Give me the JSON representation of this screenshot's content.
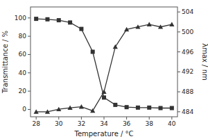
{
  "chart_data": {
    "type": "line",
    "x_label": "Temperature / °C",
    "y_label": "Transmittance / %",
    "y2_label": "λmax / nm",
    "x": [
      28,
      29,
      30,
      31,
      32,
      33,
      34,
      35,
      36,
      37,
      38,
      39,
      40
    ],
    "series": [
      {
        "color": "#333333",
        "marker": "square",
        "values": [
          99,
          98.5,
          97.5,
          95,
          88,
          63,
          13,
          5,
          2.5,
          2,
          2,
          1.5,
          1.5
        ]
      },
      {
        "color": "#333333",
        "marker": "triangle",
        "axis": "y2",
        "values": [
          484,
          484,
          484.5,
          484.8,
          485,
          484.2,
          488,
          497,
          500.5,
          501,
          501.5,
          501,
          501.5
        ]
      }
    ],
    "xlim": [
      27.5,
      40.5
    ],
    "xticks": [
      28,
      30,
      32,
      34,
      36,
      38,
      40
    ],
    "ylim": [
      -8,
      112
    ],
    "yticks": [
      0,
      20,
      40,
      60,
      80,
      100
    ],
    "y2lim": [
      483,
      505
    ],
    "y2ticks": [
      484,
      488,
      492,
      496,
      500,
      504
    ],
    "grid": false
  }
}
